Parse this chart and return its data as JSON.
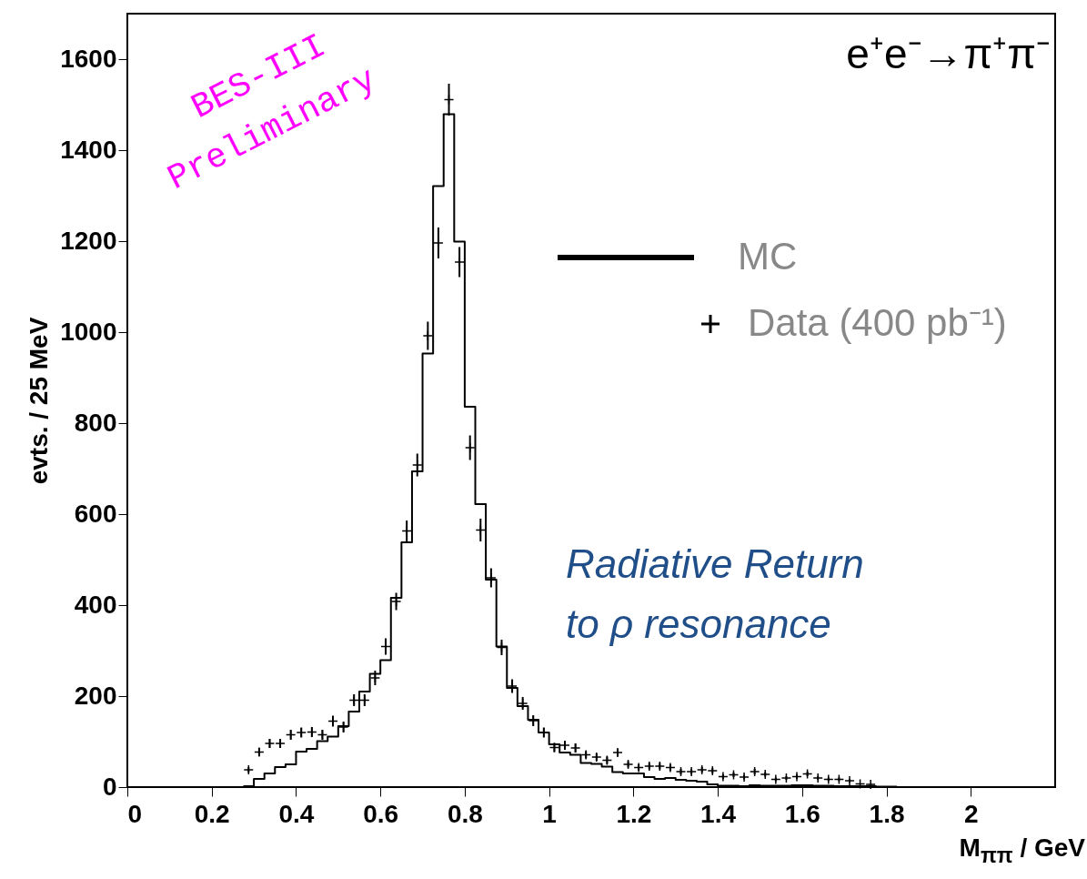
{
  "chart_data": {
    "type": "step",
    "xlabel": "M$_{ππ}$ / GeV",
    "ylabel": "evts. / 25 MeV",
    "annotations": [
      "e⁺e⁻→π⁺π⁻",
      "BES-III",
      "Preliminary",
      "Radiative Return",
      "to ρ resonance"
    ],
    "series": [
      {
        "name": "MC",
        "color": "#000000",
        "x": [
          0.275,
          0.3,
          0.325,
          0.35,
          0.375,
          0.4,
          0.425,
          0.45,
          0.475,
          0.5,
          0.525,
          0.55,
          0.575,
          0.6,
          0.625,
          0.65,
          0.675,
          0.7,
          0.725,
          0.75,
          0.775,
          0.8,
          0.825,
          0.85,
          0.875,
          0.9,
          0.925,
          0.95,
          0.975,
          1.0,
          1.025,
          1.05,
          1.075,
          1.1,
          1.125,
          1.15,
          1.175,
          1.2,
          1.225,
          1.25,
          1.275,
          1.3,
          1.325,
          1.35,
          1.375,
          1.4,
          1.425,
          1.45,
          1.475,
          1.5,
          1.525,
          1.55,
          1.575,
          1.6,
          1.625,
          1.65,
          1.675,
          1.7,
          1.725,
          1.75,
          1.775,
          1.8,
          1.825
        ],
        "values": [
          2,
          18,
          30,
          44,
          50,
          78,
          84,
          101,
          111,
          134,
          166,
          210,
          249,
          279,
          416,
          538,
          694,
          953,
          1321,
          1479,
          1199,
          836,
          622,
          456,
          309,
          218,
          178,
          148,
          120,
          94,
          76,
          71,
          53,
          51,
          45,
          33,
          30,
          30,
          22,
          18,
          20,
          16,
          14,
          12,
          6,
          3,
          3,
          2,
          4,
          3,
          3,
          3,
          4,
          4,
          3,
          3,
          2,
          2,
          2,
          2,
          1,
          1,
          1
        ]
      },
      {
        "name": "Data (400 pb⁻¹)",
        "type": "scatter",
        "color": "#000000",
        "marker": "cross",
        "x": [
          0.2875,
          0.3125,
          0.3375,
          0.3625,
          0.3875,
          0.4125,
          0.4375,
          0.4625,
          0.4875,
          0.5125,
          0.5375,
          0.5625,
          0.5875,
          0.6125,
          0.6375,
          0.6625,
          0.6875,
          0.7125,
          0.7375,
          0.7625,
          0.7875,
          0.8125,
          0.8375,
          0.8625,
          0.8875,
          0.9125,
          0.9375,
          0.9625,
          0.9875,
          1.0125,
          1.0375,
          1.0625,
          1.0875,
          1.1125,
          1.1375,
          1.1625,
          1.1875,
          1.2125,
          1.2375,
          1.2625,
          1.2875,
          1.3125,
          1.3375,
          1.3625,
          1.3875,
          1.4125,
          1.4375,
          1.4625,
          1.4875,
          1.5125,
          1.5375,
          1.5625,
          1.5875,
          1.6125,
          1.6375,
          1.6625,
          1.6875,
          1.7125,
          1.7375,
          1.7625
        ],
        "values": [
          38,
          77,
          96,
          96,
          115,
          120,
          121,
          115,
          145,
          132,
          191,
          191,
          240,
          309,
          408,
          563,
          708,
          992,
          1196,
          1511,
          1154,
          746,
          565,
          460,
          307,
          222,
          184,
          146,
          120,
          87,
          92,
          86,
          71,
          66,
          59,
          76,
          50,
          43,
          46,
          46,
          43,
          34,
          34,
          38,
          36,
          23,
          27,
          22,
          34,
          28,
          17,
          20,
          23,
          29,
          20,
          17,
          17,
          14,
          7,
          6
        ],
        "errors": [
          6,
          9,
          10,
          10,
          11,
          11,
          11,
          11,
          12,
          12,
          13,
          13,
          16,
          18,
          19,
          23,
          25,
          31,
          34,
          35,
          33,
          27,
          25,
          21,
          17,
          15,
          14,
          12,
          11,
          10,
          10,
          10,
          8,
          8,
          8,
          8,
          7,
          7,
          7,
          7,
          7,
          6,
          6,
          6,
          6,
          5,
          5,
          5,
          6,
          5,
          4,
          4,
          5,
          5,
          4,
          4,
          4,
          4,
          null,
          null
        ]
      }
    ],
    "xlim": [
      0,
      2.2
    ],
    "xticks": [
      0,
      0.2,
      0.4,
      0.6,
      0.8,
      1,
      1.2,
      1.4,
      1.6,
      1.8,
      2
    ],
    "ylim": [
      0,
      1700
    ],
    "yticks": [
      0,
      200,
      400,
      600,
      800,
      1000,
      1200,
      1400,
      1600
    ],
    "grid": false,
    "legend": "top right"
  }
}
